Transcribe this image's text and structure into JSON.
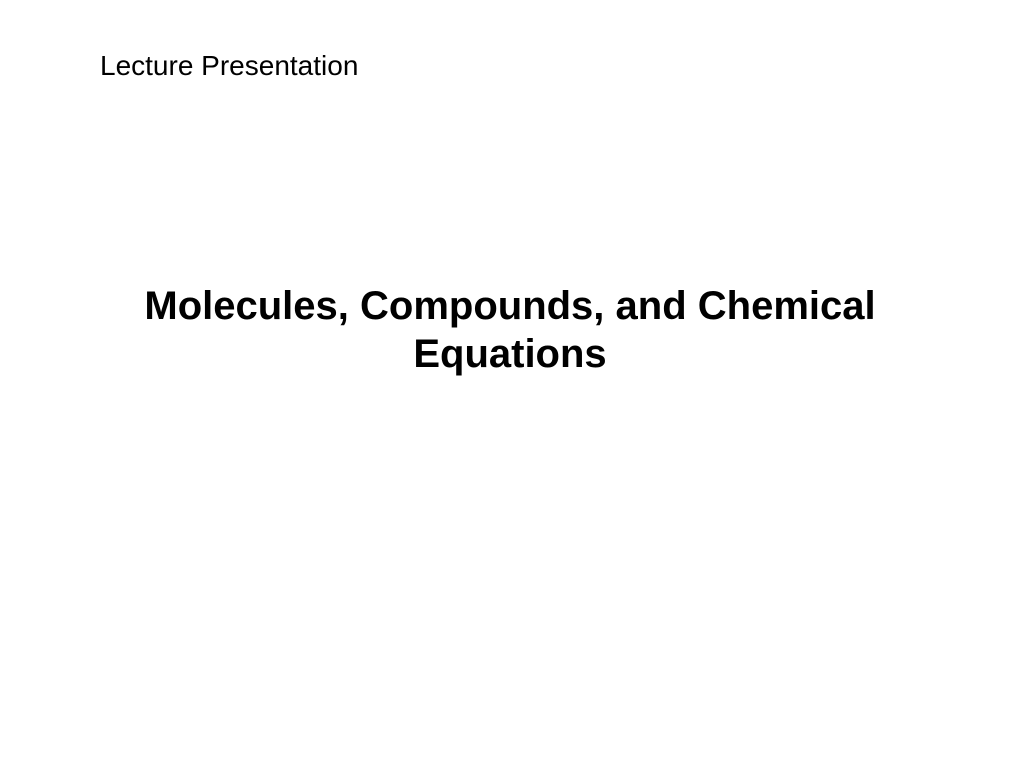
{
  "slide": {
    "subtitle": "Lecture Presentation",
    "title": "Molecules, Compounds, and Chemical Equations",
    "background_color": "#ffffff",
    "text_color": "#000000",
    "subtitle_fontsize": 28,
    "subtitle_fontweight": "normal",
    "title_fontsize": 40,
    "title_fontweight": "bold",
    "font_family": "Arial, Helvetica, sans-serif"
  }
}
